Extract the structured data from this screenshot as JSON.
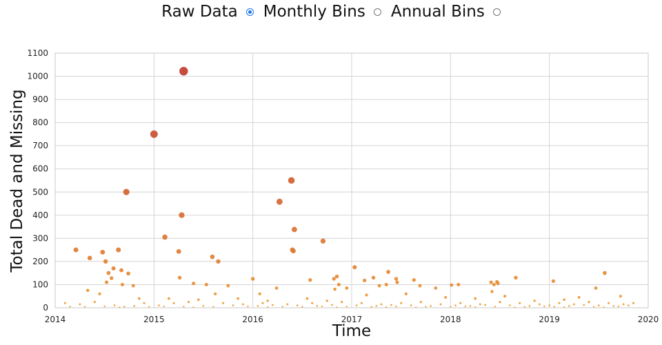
{
  "controls": {
    "options": [
      {
        "label": "Raw Data",
        "checked": true
      },
      {
        "label": "Monthly Bins",
        "checked": false
      },
      {
        "label": "Annual Bins",
        "checked": false
      }
    ]
  },
  "chart_data": {
    "type": "scatter",
    "title": "",
    "xlabel": "Time",
    "ylabel": "Total Dead and Missing",
    "xlim": [
      2014,
      2020
    ],
    "ylim": [
      0,
      1100
    ],
    "x_ticks": [
      "2014",
      "2015",
      "2016",
      "2017",
      "2018",
      "2019",
      "2020"
    ],
    "y_ticks": [
      "0",
      "100",
      "200",
      "300",
      "400",
      "500",
      "600",
      "700",
      "800",
      "900",
      "1000",
      "1100"
    ],
    "grid": true,
    "legend": "none",
    "point_color_low": "#f0a030",
    "point_color_high": "#c0392b",
    "points": [
      [
        2014.21,
        250
      ],
      [
        2014.35,
        215
      ],
      [
        2014.48,
        240
      ],
      [
        2014.51,
        200
      ],
      [
        2014.54,
        150
      ],
      [
        2014.57,
        128
      ],
      [
        2014.52,
        110
      ],
      [
        2014.59,
        170
      ],
      [
        2014.64,
        250
      ],
      [
        2014.67,
        162
      ],
      [
        2014.72,
        500
      ],
      [
        2014.74,
        148
      ],
      [
        2014.79,
        95
      ],
      [
        2014.68,
        100
      ],
      [
        2014.33,
        75
      ],
      [
        2015.0,
        750
      ],
      [
        2015.11,
        305
      ],
      [
        2015.25,
        243
      ],
      [
        2015.28,
        400
      ],
      [
        2015.3,
        1022
      ],
      [
        2015.26,
        130
      ],
      [
        2015.4,
        105
      ],
      [
        2015.53,
        100
      ],
      [
        2015.59,
        220
      ],
      [
        2015.65,
        200
      ],
      [
        2015.62,
        60
      ],
      [
        2015.75,
        95
      ],
      [
        2016.0,
        125
      ],
      [
        2016.07,
        60
      ],
      [
        2016.24,
        85
      ],
      [
        2016.27,
        458
      ],
      [
        2016.39,
        550
      ],
      [
        2016.4,
        250
      ],
      [
        2016.41,
        245
      ],
      [
        2016.42,
        338
      ],
      [
        2016.58,
        120
      ],
      [
        2016.71,
        288
      ],
      [
        2016.82,
        125
      ],
      [
        2016.85,
        135
      ],
      [
        2016.87,
        100
      ],
      [
        2016.83,
        80
      ],
      [
        2016.95,
        85
      ],
      [
        2017.03,
        175
      ],
      [
        2017.13,
        118
      ],
      [
        2017.22,
        130
      ],
      [
        2017.28,
        95
      ],
      [
        2017.35,
        100
      ],
      [
        2017.37,
        155
      ],
      [
        2017.45,
        125
      ],
      [
        2017.46,
        110
      ],
      [
        2017.63,
        120
      ],
      [
        2017.69,
        95
      ],
      [
        2017.85,
        85
      ],
      [
        2018.01,
        98
      ],
      [
        2018.08,
        100
      ],
      [
        2018.41,
        110
      ],
      [
        2018.44,
        100
      ],
      [
        2018.47,
        112
      ],
      [
        2018.48,
        105
      ],
      [
        2018.66,
        130
      ],
      [
        2018.42,
        70
      ],
      [
        2019.04,
        115
      ],
      [
        2019.3,
        45
      ],
      [
        2019.47,
        85
      ],
      [
        2019.56,
        150
      ],
      [
        2019.72,
        50
      ],
      [
        2014.45,
        60
      ],
      [
        2014.85,
        40
      ],
      [
        2015.15,
        40
      ],
      [
        2015.45,
        35
      ],
      [
        2015.85,
        40
      ],
      [
        2016.15,
        30
      ],
      [
        2016.55,
        40
      ],
      [
        2016.75,
        30
      ],
      [
        2017.15,
        55
      ],
      [
        2017.55,
        60
      ],
      [
        2017.95,
        45
      ],
      [
        2018.25,
        40
      ],
      [
        2018.55,
        50
      ],
      [
        2018.85,
        30
      ],
      [
        2019.15,
        35
      ],
      [
        2019.85,
        20
      ],
      [
        2014.1,
        20
      ],
      [
        2014.25,
        15
      ],
      [
        2014.4,
        25
      ],
      [
        2014.9,
        20
      ],
      [
        2015.2,
        20
      ],
      [
        2015.35,
        25
      ],
      [
        2015.7,
        20
      ],
      [
        2015.9,
        15
      ],
      [
        2016.1,
        20
      ],
      [
        2016.35,
        15
      ],
      [
        2016.6,
        20
      ],
      [
        2016.9,
        25
      ],
      [
        2017.1,
        20
      ],
      [
        2017.3,
        15
      ],
      [
        2017.5,
        20
      ],
      [
        2017.7,
        25
      ],
      [
        2017.9,
        15
      ],
      [
        2018.1,
        20
      ],
      [
        2018.3,
        15
      ],
      [
        2018.5,
        25
      ],
      [
        2018.7,
        20
      ],
      [
        2018.9,
        15
      ],
      [
        2019.1,
        20
      ],
      [
        2019.25,
        15
      ],
      [
        2019.4,
        25
      ],
      [
        2019.6,
        20
      ],
      [
        2019.75,
        15
      ],
      [
        2014.6,
        10
      ],
      [
        2014.8,
        8
      ],
      [
        2015.05,
        10
      ],
      [
        2015.5,
        8
      ],
      [
        2015.8,
        10
      ],
      [
        2016.05,
        8
      ],
      [
        2016.2,
        12
      ],
      [
        2016.45,
        10
      ],
      [
        2016.65,
        8
      ],
      [
        2016.8,
        12
      ],
      [
        2017.05,
        10
      ],
      [
        2017.25,
        8
      ],
      [
        2017.4,
        12
      ],
      [
        2017.6,
        10
      ],
      [
        2017.8,
        8
      ],
      [
        2018.05,
        10
      ],
      [
        2018.2,
        8
      ],
      [
        2018.35,
        12
      ],
      [
        2018.6,
        10
      ],
      [
        2018.8,
        8
      ],
      [
        2019.0,
        10
      ],
      [
        2019.2,
        8
      ],
      [
        2019.35,
        12
      ],
      [
        2019.5,
        10
      ],
      [
        2019.65,
        8
      ],
      [
        2019.8,
        10
      ],
      [
        2014.15,
        5
      ],
      [
        2014.3,
        4
      ],
      [
        2014.5,
        6
      ],
      [
        2014.7,
        5
      ],
      [
        2014.95,
        4
      ],
      [
        2015.1,
        6
      ],
      [
        2015.3,
        5
      ],
      [
        2015.6,
        4
      ],
      [
        2015.95,
        6
      ],
      [
        2016.3,
        5
      ],
      [
        2016.5,
        4
      ],
      [
        2016.7,
        6
      ],
      [
        2016.95,
        5
      ],
      [
        2017.2,
        4
      ],
      [
        2017.45,
        6
      ],
      [
        2017.75,
        5
      ],
      [
        2018.0,
        4
      ],
      [
        2018.15,
        6
      ],
      [
        2018.45,
        5
      ],
      [
        2018.75,
        4
      ],
      [
        2018.95,
        6
      ],
      [
        2019.05,
        5
      ],
      [
        2019.45,
        4
      ],
      [
        2019.7,
        6
      ],
      [
        2014.65,
        2
      ],
      [
        2015.4,
        2
      ],
      [
        2016.15,
        3
      ],
      [
        2016.85,
        2
      ],
      [
        2017.35,
        3
      ],
      [
        2017.65,
        2
      ],
      [
        2018.25,
        3
      ],
      [
        2018.65,
        2
      ],
      [
        2019.15,
        3
      ],
      [
        2019.55,
        2
      ]
    ]
  }
}
